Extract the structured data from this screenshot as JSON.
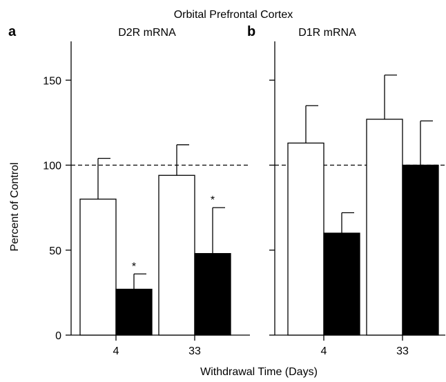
{
  "chart_data": {
    "title": "Orbital Prefrontal Cortex",
    "xlabel": "Withdrawal Time (Days)",
    "ylabel": "Percent of Control",
    "ylim": [
      0,
      160
    ],
    "yticks": [
      "0",
      "50",
      "100",
      "150"
    ],
    "reference_line": 100,
    "panels": [
      {
        "letter": "a",
        "title": "D2R mRNA",
        "type": "bar",
        "categories": [
          "4",
          "33"
        ],
        "series": [
          {
            "color": "#ffffff",
            "values": [
              80,
              94
            ],
            "errors": [
              24,
              18
            ]
          },
          {
            "color": "#000000",
            "values": [
              27,
              48
            ],
            "errors": [
              9,
              27
            ]
          }
        ],
        "significance": [
          [
            false,
            false
          ],
          [
            true,
            true
          ]
        ],
        "significance_symbol": "*"
      },
      {
        "letter": "b",
        "title": "D1R mRNA",
        "type": "bar",
        "categories": [
          "4",
          "33"
        ],
        "series": [
          {
            "color": "#ffffff",
            "values": [
              113,
              127
            ],
            "errors": [
              22,
              26
            ]
          },
          {
            "color": "#000000",
            "values": [
              60,
              100
            ],
            "errors": [
              12,
              26
            ]
          }
        ],
        "significance": [
          [
            false,
            false
          ],
          [
            false,
            false
          ]
        ],
        "significance_symbol": "*"
      }
    ]
  }
}
